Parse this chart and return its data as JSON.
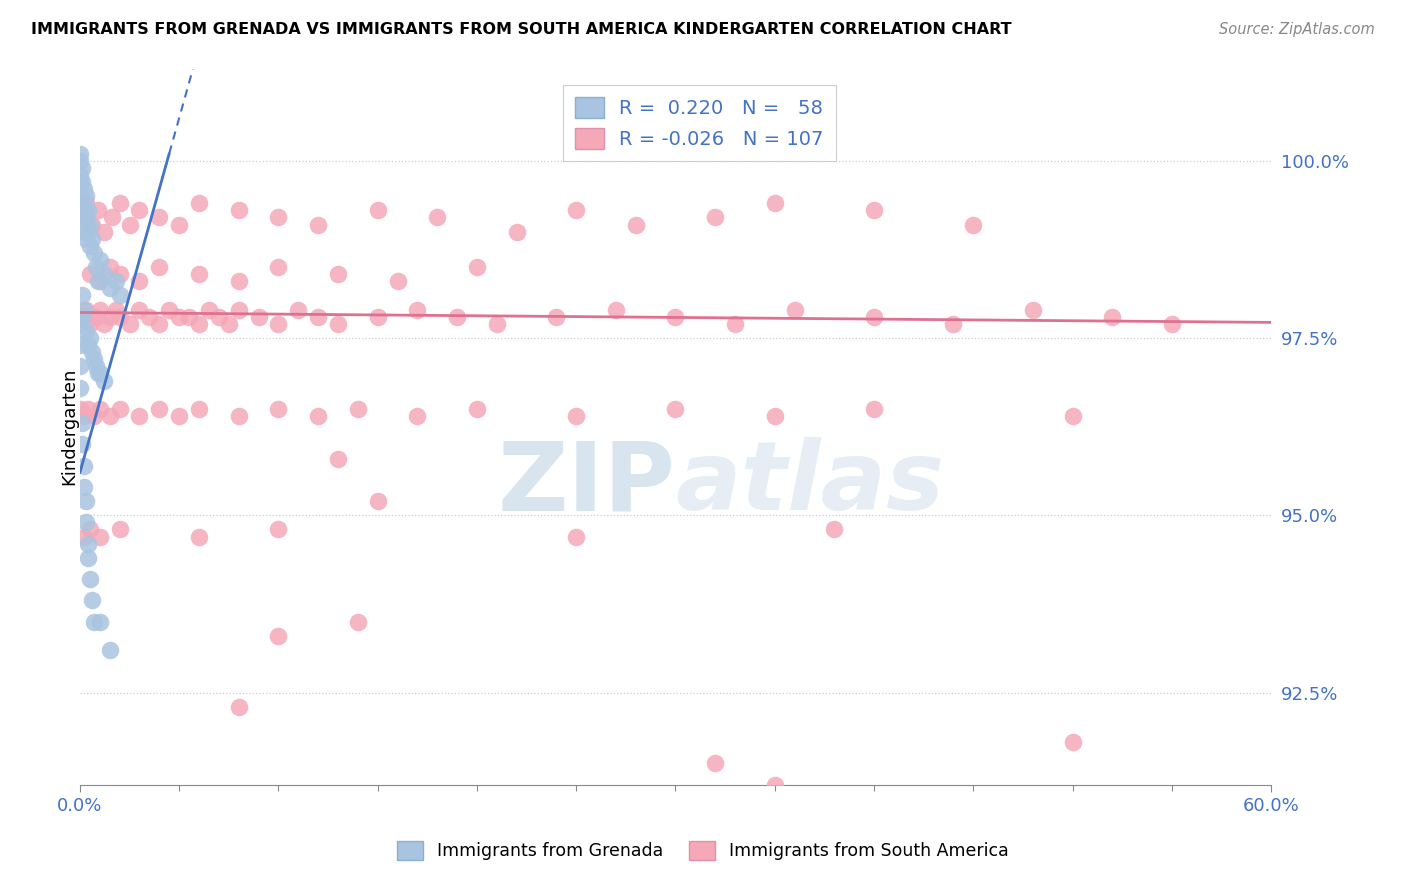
{
  "title": "IMMIGRANTS FROM GRENADA VS IMMIGRANTS FROM SOUTH AMERICA KINDERGARTEN CORRELATION CHART",
  "source": "Source: ZipAtlas.com",
  "ylabel": "Kindergarten",
  "right_yticks": [
    100.0,
    97.5,
    95.0,
    92.5
  ],
  "xmin": 0.0,
  "xmax": 0.6,
  "ymin": 91.2,
  "ymax": 101.3,
  "legend_blue_R": "0.220",
  "legend_blue_N": "58",
  "legend_pink_R": "-0.026",
  "legend_pink_N": "107",
  "blue_color": "#a8c4e0",
  "pink_color": "#f4a8b8",
  "blue_line_color": "#4472c4",
  "pink_line_color": "#e07090",
  "watermark_text": "ZIPatlas",
  "watermark_color": "#c8d8e8",
  "blue_scatter_x": [
    0.0,
    0.0,
    0.0,
    0.0,
    0.0,
    0.0,
    0.001,
    0.001,
    0.001,
    0.001,
    0.002,
    0.002,
    0.002,
    0.003,
    0.003,
    0.003,
    0.004,
    0.004,
    0.005,
    0.005,
    0.006,
    0.007,
    0.008,
    0.009,
    0.01,
    0.012,
    0.015,
    0.018,
    0.02,
    0.0,
    0.0,
    0.0,
    0.0,
    0.001,
    0.001,
    0.002,
    0.003,
    0.004,
    0.005,
    0.006,
    0.007,
    0.008,
    0.009,
    0.01,
    0.012,
    0.001,
    0.001,
    0.002,
    0.002,
    0.003,
    0.003,
    0.004,
    0.004,
    0.005,
    0.006,
    0.007,
    0.01,
    0.015
  ],
  "blue_scatter_y": [
    100.1,
    100.0,
    99.8,
    99.7,
    99.5,
    99.3,
    99.9,
    99.7,
    99.4,
    99.1,
    99.6,
    99.3,
    99.0,
    99.5,
    99.2,
    98.9,
    99.3,
    99.0,
    99.1,
    98.8,
    98.9,
    98.7,
    98.5,
    98.3,
    98.6,
    98.4,
    98.2,
    98.3,
    98.1,
    97.7,
    97.4,
    97.1,
    96.8,
    98.1,
    97.8,
    97.9,
    97.6,
    97.4,
    97.5,
    97.3,
    97.2,
    97.1,
    97.0,
    97.0,
    96.9,
    96.3,
    96.0,
    95.7,
    95.4,
    95.2,
    94.9,
    94.6,
    94.4,
    94.1,
    93.8,
    93.5,
    93.5,
    93.1
  ],
  "pink_scatter_x": [
    0.0,
    0.003,
    0.005,
    0.008,
    0.01,
    0.012,
    0.015,
    0.018,
    0.02,
    0.025,
    0.03,
    0.035,
    0.04,
    0.045,
    0.05,
    0.055,
    0.06,
    0.065,
    0.07,
    0.075,
    0.08,
    0.09,
    0.1,
    0.11,
    0.12,
    0.13,
    0.15,
    0.17,
    0.19,
    0.21,
    0.24,
    0.27,
    0.3,
    0.33,
    0.36,
    0.4,
    0.44,
    0.48,
    0.52,
    0.55,
    0.001,
    0.003,
    0.006,
    0.009,
    0.012,
    0.016,
    0.02,
    0.025,
    0.03,
    0.04,
    0.05,
    0.06,
    0.08,
    0.1,
    0.12,
    0.15,
    0.18,
    0.22,
    0.25,
    0.28,
    0.32,
    0.35,
    0.4,
    0.45,
    0.005,
    0.01,
    0.015,
    0.02,
    0.03,
    0.04,
    0.06,
    0.08,
    0.1,
    0.13,
    0.16,
    0.2,
    0.0,
    0.002,
    0.004,
    0.007,
    0.01,
    0.015,
    0.02,
    0.03,
    0.04,
    0.05,
    0.06,
    0.08,
    0.1,
    0.12,
    0.14,
    0.17,
    0.2,
    0.25,
    0.3,
    0.35,
    0.4,
    0.5,
    0.002,
    0.005,
    0.01,
    0.02,
    0.06,
    0.1,
    0.25,
    0.38
  ],
  "pink_scatter_y": [
    97.8,
    97.9,
    97.7,
    97.8,
    97.9,
    97.7,
    97.8,
    97.9,
    97.8,
    97.7,
    97.9,
    97.8,
    97.7,
    97.9,
    97.8,
    97.8,
    97.7,
    97.9,
    97.8,
    97.7,
    97.9,
    97.8,
    97.7,
    97.9,
    97.8,
    97.7,
    97.8,
    97.9,
    97.8,
    97.7,
    97.8,
    97.9,
    97.8,
    97.7,
    97.9,
    97.8,
    97.7,
    97.9,
    97.8,
    97.7,
    99.2,
    99.4,
    99.1,
    99.3,
    99.0,
    99.2,
    99.4,
    99.1,
    99.3,
    99.2,
    99.1,
    99.4,
    99.3,
    99.2,
    99.1,
    99.3,
    99.2,
    99.0,
    99.3,
    99.1,
    99.2,
    99.4,
    99.3,
    99.1,
    98.4,
    98.3,
    98.5,
    98.4,
    98.3,
    98.5,
    98.4,
    98.3,
    98.5,
    98.4,
    98.3,
    98.5,
    96.5,
    96.4,
    96.5,
    96.4,
    96.5,
    96.4,
    96.5,
    96.4,
    96.5,
    96.4,
    96.5,
    96.4,
    96.5,
    96.4,
    96.5,
    96.4,
    96.5,
    96.4,
    96.5,
    96.4,
    96.5,
    96.4,
    94.7,
    94.8,
    94.7,
    94.8,
    94.7,
    94.8,
    94.7,
    94.8
  ],
  "pink_outliers_x": [
    0.1,
    0.08,
    0.13,
    0.15,
    0.14,
    0.32,
    0.35,
    0.5
  ],
  "pink_outliers_y": [
    93.3,
    92.3,
    95.8,
    95.2,
    93.5,
    91.5,
    91.2,
    91.8
  ],
  "blue_line_x0": 0.0,
  "blue_line_x1": 0.045,
  "blue_line_y0": 95.6,
  "blue_line_y1": 100.1,
  "pink_line_x0": 0.0,
  "pink_line_x1": 0.6,
  "pink_line_y0": 97.86,
  "pink_line_y1": 97.72
}
